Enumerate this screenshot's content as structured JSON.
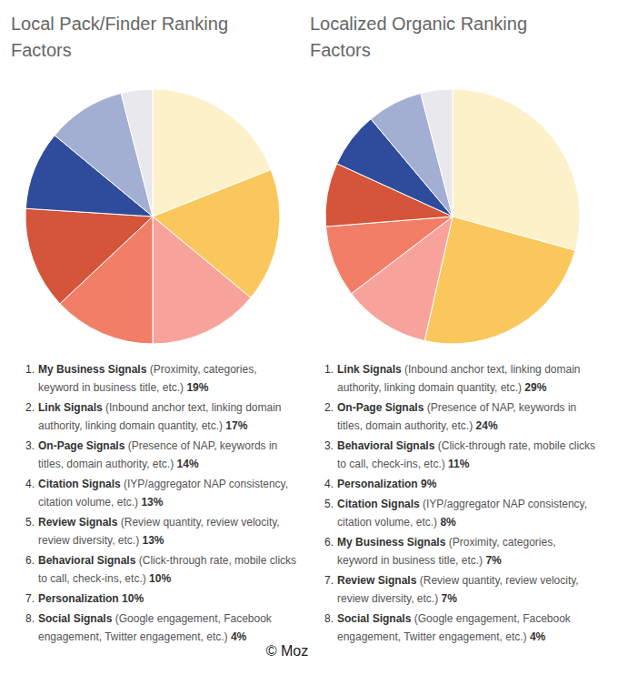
{
  "chart_data": [
    {
      "type": "pie",
      "title": "Local Pack/Finder Ranking Factors",
      "ranks": [
        "1.",
        "2.",
        "3.",
        "4.",
        "5.",
        "6.",
        "7.",
        "8."
      ],
      "categories": [
        "My Business Signals",
        "Link Signals",
        "On-Page Signals",
        "Citation Signals",
        "Review Signals",
        "Behavioral Signals",
        "Personalization",
        "Social Signals"
      ],
      "descriptions": [
        "(Proximity, categories, keyword in business title, etc.)",
        "(Inbound anchor text, linking domain authority, linking domain quantity, etc.)",
        "(Presence of NAP, keywords in titles, domain authority, etc.)",
        "(IYP/aggregator NAP consistency, citation volume, etc.)",
        "(Review quantity, review velocity, review diversity, etc.)",
        "(Click-through rate, mobile clicks to call, check-ins, etc.)",
        null,
        "(Google engagement, Facebook engagement, Twitter engagement, etc.)"
      ],
      "values": [
        19,
        17,
        14,
        13,
        13,
        10,
        10,
        4
      ],
      "value_labels": [
        "19%",
        "17%",
        "14%",
        "13%",
        "13%",
        "10%",
        "10%",
        "4%"
      ],
      "colors": [
        "#fdf1ca",
        "#f9c75c",
        "#f7a39c",
        "#f37e68",
        "#d5553a",
        "#2f4c9c",
        "#a3afd2",
        "#e9e8ec"
      ]
    },
    {
      "type": "pie",
      "title": "Localized Organic Ranking Factors",
      "ranks": [
        "1.",
        "2.",
        "3.",
        "4.",
        "5.",
        "6.",
        "7.",
        "8."
      ],
      "categories": [
        "Link Signals",
        "On-Page Signals",
        "Behavioral Signals",
        "Personalization",
        "Citation Signals",
        "My Business Signals",
        "Review Signals",
        "Social Signals"
      ],
      "descriptions": [
        "(Inbound anchor text, linking domain authority, linking domain quantity, etc.)",
        "(Presence of NAP, keywords in titles, domain authority, etc.)",
        "(Click-through rate, mobile clicks to call, check-ins, etc.)",
        null,
        "(IYP/aggregator NAP consistency, citation volume, etc.)",
        "(Proximity, categories, keyword in business title, etc.)",
        "(Review quantity, review velocity, review diversity, etc.)",
        "(Google engagement, Facebook engagement, Twitter engagement, etc.)"
      ],
      "values": [
        29,
        24,
        11,
        9,
        8,
        7,
        7,
        4
      ],
      "value_labels": [
        "29%",
        "24%",
        "11%",
        "9%",
        "8%",
        "7%",
        "7%",
        "4%"
      ],
      "colors": [
        "#fdf1ca",
        "#f9c75c",
        "#f7a39c",
        "#f37e68",
        "#d5553a",
        "#2f4c9c",
        "#a3afd2",
        "#e9e8ec"
      ]
    }
  ],
  "credit": "© Moz"
}
